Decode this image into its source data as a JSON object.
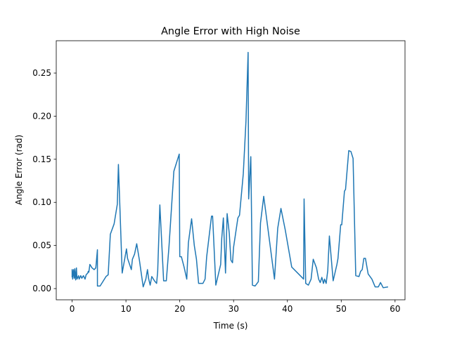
{
  "chart_data": {
    "type": "line",
    "title": "Angle Error with High Noise",
    "xlabel": "Time (s)",
    "ylabel": "Angle Error (rad)",
    "x": [
      0,
      0,
      0.1,
      0.25,
      0.4,
      0.5,
      0.65,
      0.8,
      0.9,
      1.2,
      1.3,
      1.6,
      1.8,
      2.1,
      2.4,
      2.6,
      2.9,
      3.0,
      3.1,
      3.3,
      3.7,
      4.1,
      4.4,
      4.7,
      4.7,
      5.2,
      5.8,
      6.3,
      6.7,
      7.1,
      7.8,
      8.4,
      8.6,
      9.3,
      10.1,
      10.3,
      11.0,
      11.2,
      11.6,
      12.0,
      12.5,
      13.2,
      13.7,
      14.0,
      14.2,
      14.5,
      14.8,
      15.3,
      15.7,
      15.9,
      16.3,
      17.0,
      17.5,
      18.0,
      18.9,
      19.9,
      20.0,
      20.3,
      20.8,
      21.3,
      21.6,
      22.2,
      22.7,
      23.1,
      23.5,
      24.3,
      24.7,
      25.0,
      25.9,
      26.1,
      26.7,
      27.6,
      27.8,
      28.1,
      28.5,
      28.8,
      29.2,
      29.5,
      29.8,
      30.0,
      30.8,
      31.1,
      31.8,
      32.3,
      32.7,
      32.8,
      33.2,
      33.5,
      34.0,
      34.6,
      35.0,
      35.6,
      36.6,
      37.6,
      38.2,
      38.8,
      39.6,
      40.8,
      42.7,
      43.0,
      43.1,
      43.4,
      43.9,
      44.4,
      44.8,
      45.4,
      45.8,
      46.1,
      46.4,
      46.7,
      46.9,
      47.2,
      47.5,
      47.8,
      48.5,
      49.2,
      49.4,
      49.9,
      50.1,
      50.6,
      50.8,
      51.4,
      51.8,
      52.2,
      52.7,
      53.3,
      53.6,
      53.9,
      54.2,
      54.5,
      55.0,
      55.7,
      56.3,
      56.9,
      57.3,
      57.8,
      58.7
    ],
    "y": [
      0.013,
      0.022,
      0.011,
      0.022,
      0.012,
      0.023,
      0.01,
      0.024,
      0.011,
      0.015,
      0.011,
      0.015,
      0.012,
      0.015,
      0.011,
      0.016,
      0.018,
      0.02,
      0.019,
      0.028,
      0.024,
      0.022,
      0.024,
      0.045,
      0.003,
      0.003,
      0.009,
      0.014,
      0.016,
      0.063,
      0.075,
      0.098,
      0.144,
      0.018,
      0.046,
      0.035,
      0.022,
      0.034,
      0.04,
      0.052,
      0.033,
      0.002,
      0.011,
      0.022,
      0.012,
      0.004,
      0.014,
      0.009,
      0.006,
      0.02,
      0.097,
      0.009,
      0.009,
      0.049,
      0.136,
      0.156,
      0.037,
      0.037,
      0.025,
      0.011,
      0.053,
      0.081,
      0.05,
      0.034,
      0.006,
      0.006,
      0.011,
      0.037,
      0.084,
      0.084,
      0.004,
      0.028,
      0.058,
      0.082,
      0.018,
      0.087,
      0.064,
      0.033,
      0.03,
      0.048,
      0.082,
      0.085,
      0.133,
      0.194,
      0.274,
      0.104,
      0.153,
      0.004,
      0.003,
      0.008,
      0.076,
      0.107,
      0.059,
      0.011,
      0.07,
      0.093,
      0.068,
      0.025,
      0.013,
      0.011,
      0.104,
      0.006,
      0.004,
      0.011,
      0.034,
      0.024,
      0.011,
      0.007,
      0.013,
      0.006,
      0.011,
      0.006,
      0.021,
      0.061,
      0.009,
      0.028,
      0.035,
      0.074,
      0.074,
      0.113,
      0.115,
      0.16,
      0.159,
      0.151,
      0.015,
      0.014,
      0.02,
      0.022,
      0.035,
      0.035,
      0.017,
      0.011,
      0.002,
      0.002,
      0.007,
      0.001,
      0.002
    ],
    "color": "#1f77b4",
    "xlim": [
      -2.95,
      61.85
    ],
    "ylim": [
      -0.013,
      0.2875
    ],
    "xticks": [
      0,
      10,
      20,
      30,
      40,
      50,
      60
    ],
    "yticks": [
      {
        "value": 0,
        "label": "0.00"
      },
      {
        "value": 0.05,
        "label": "0.05"
      },
      {
        "value": 0.1,
        "label": "0.10"
      },
      {
        "value": 0.15,
        "label": "0.15"
      },
      {
        "value": 0.2,
        "label": "0.20"
      },
      {
        "value": 0.25,
        "label": "0.25"
      }
    ]
  }
}
